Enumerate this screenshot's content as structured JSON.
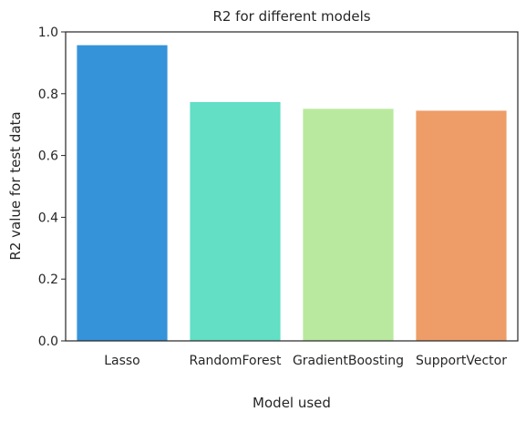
{
  "chart_data": {
    "type": "bar",
    "title": "R2 for different models",
    "xlabel": "Model used",
    "ylabel": "R2 value for test data",
    "categories": [
      "Lasso",
      "RandomForest",
      "GradientBoosting",
      "SupportVector"
    ],
    "values": [
      0.957,
      0.773,
      0.751,
      0.745
    ],
    "colors": [
      "#3593d9",
      "#62dfc5",
      "#b9e99e",
      "#ee9d68"
    ],
    "ylim": [
      0,
      1.0
    ],
    "yticks": [
      "0.0",
      "0.2",
      "0.4",
      "0.6",
      "0.8",
      "1.0"
    ],
    "ytick_values": [
      0,
      0.2,
      0.4,
      0.6,
      0.8,
      1.0
    ],
    "grid": false,
    "legend": "none"
  }
}
